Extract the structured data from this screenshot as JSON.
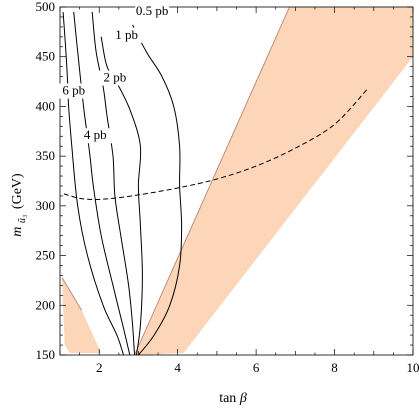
{
  "chart_data": {
    "type": "line",
    "title": "",
    "xlabel_prefix": "tan",
    "xlabel_symbol": "β",
    "ylabel_prefix": "m",
    "ylabel_sub": "ũ₃",
    "ylabel_unit": "(GeV)",
    "xlim": [
      1,
      10
    ],
    "ylim": [
      150,
      500
    ],
    "x_ticks": [
      2,
      4,
      6,
      8,
      10
    ],
    "y_ticks": [
      150,
      200,
      250,
      300,
      350,
      400,
      450,
      500
    ],
    "shaded_color": "#fdd5b8",
    "shaded_regions": [
      {
        "name": "excluded-right",
        "points": [
          [
            6.85,
            500
          ],
          [
            10,
            500
          ],
          [
            10,
            450
          ],
          [
            4.15,
            152
          ],
          [
            2.9,
            150
          ],
          [
            6.85,
            500
          ]
        ]
      },
      {
        "name": "excluded-left",
        "points": [
          [
            1.05,
            228
          ],
          [
            1.12,
            160
          ],
          [
            1.25,
            152
          ],
          [
            2.05,
            152
          ],
          [
            1.55,
            195
          ],
          [
            1.05,
            228
          ]
        ]
      }
    ],
    "dashed_curve": {
      "points": [
        [
          1.1,
          312
        ],
        [
          1.6,
          307
        ],
        [
          2.2,
          307
        ],
        [
          3,
          311
        ],
        [
          4,
          318
        ],
        [
          5,
          327
        ],
        [
          6,
          340
        ],
        [
          7,
          358
        ],
        [
          8,
          382
        ],
        [
          8.85,
          418
        ]
      ]
    },
    "contours": [
      {
        "label": "6 pb",
        "label_pos": [
          1.35,
          412
        ],
        "points": [
          [
            1.08,
            495
          ],
          [
            1.15,
            455
          ],
          [
            1.2,
            420
          ],
          [
            1.22,
            400
          ],
          [
            1.3,
            360
          ],
          [
            1.45,
            300
          ],
          [
            1.7,
            250
          ],
          [
            2.1,
            200
          ],
          [
            2.45,
            170
          ],
          [
            2.62,
            150
          ]
        ]
      },
      {
        "label": "4 pb",
        "label_pos": [
          1.9,
          367
        ],
        "points": [
          [
            1.35,
            495
          ],
          [
            1.45,
            455
          ],
          [
            1.6,
            400
          ],
          [
            1.75,
            355
          ],
          [
            1.85,
            320
          ],
          [
            2.05,
            270
          ],
          [
            2.35,
            220
          ],
          [
            2.6,
            180
          ],
          [
            2.72,
            160
          ],
          [
            2.78,
            150
          ]
        ]
      },
      {
        "label": "2 pb",
        "label_pos": [
          2.4,
          425
        ],
        "points": [
          [
            1.82,
            495
          ],
          [
            1.92,
            455
          ],
          [
            2.1,
            420
          ],
          [
            2.2,
            390
          ],
          [
            2.35,
            350
          ],
          [
            2.4,
            310
          ],
          [
            2.55,
            270
          ],
          [
            2.75,
            220
          ],
          [
            2.85,
            180
          ],
          [
            2.9,
            150
          ]
        ]
      },
      {
        "label": "1 pb",
        "label_pos": [
          2.7,
          468
        ],
        "points": [
          [
            2.05,
            470
          ],
          [
            2.2,
            440
          ],
          [
            2.5,
            420
          ],
          [
            2.8,
            395
          ],
          [
            3.05,
            360
          ],
          [
            3.0,
            320
          ],
          [
            3.05,
            280
          ],
          [
            3.1,
            230
          ],
          [
            3.05,
            180
          ],
          [
            2.95,
            150
          ]
        ]
      },
      {
        "label": "0.5 pb",
        "label_pos": [
          3.35,
          492
        ],
        "points": [
          [
            2.85,
            482
          ],
          [
            3.2,
            455
          ],
          [
            3.6,
            430
          ],
          [
            3.9,
            400
          ],
          [
            4.05,
            360
          ],
          [
            4.05,
            320
          ],
          [
            4.1,
            280
          ],
          [
            4.05,
            240
          ],
          [
            3.8,
            200
          ],
          [
            3.4,
            170
          ],
          [
            3.0,
            150
          ]
        ]
      }
    ]
  }
}
